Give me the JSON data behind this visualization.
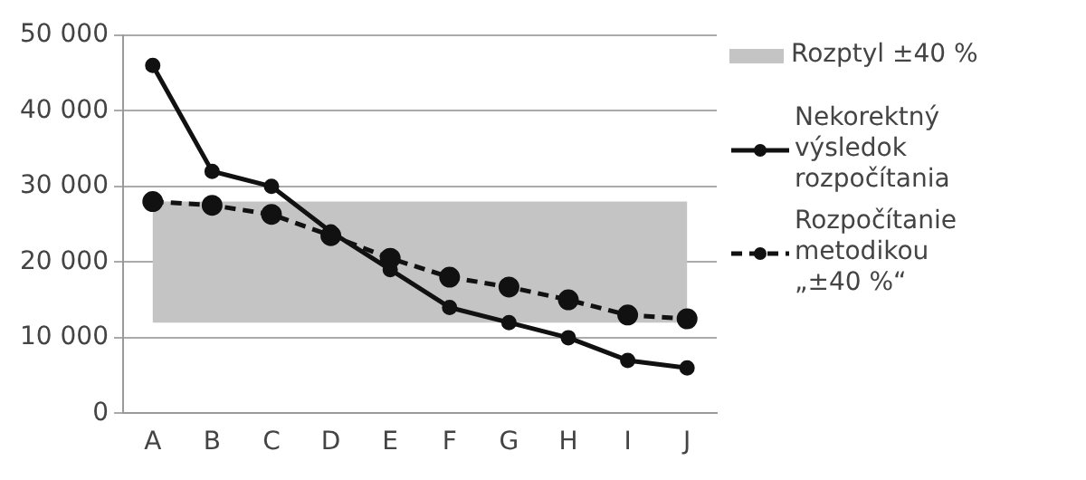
{
  "chart_data": {
    "type": "line",
    "categories": [
      "A",
      "B",
      "C",
      "D",
      "E",
      "F",
      "G",
      "H",
      "I",
      "J"
    ],
    "series": [
      {
        "name": "Nekorektný výsledok rozpočítania",
        "color": "#111111",
        "line_style": "solid",
        "values": [
          46000,
          32000,
          30000,
          24000,
          19000,
          14000,
          12000,
          10000,
          7000,
          6000
        ]
      },
      {
        "name": "Rozpočítanie metodikou „±40 %“",
        "color": "#111111",
        "line_style": "dashed",
        "values": [
          28000,
          27500,
          26300,
          23500,
          20500,
          18000,
          16700,
          15000,
          13000,
          12500
        ]
      }
    ],
    "bands": [
      {
        "axis": "y",
        "from": 12000,
        "to": 28000,
        "label": "Rozptyl ±40 %",
        "color": "#c4c4c4"
      }
    ],
    "ylim": [
      0,
      50000
    ],
    "yticks": [
      {
        "value": 0,
        "label": "0"
      },
      {
        "value": 10000,
        "label": "10 000"
      },
      {
        "value": 20000,
        "label": "20 000"
      },
      {
        "value": 30000,
        "label": "30 000"
      },
      {
        "value": 40000,
        "label": "40 000"
      },
      {
        "value": 50000,
        "label": "50 000"
      }
    ],
    "grid": "y",
    "legend": "right",
    "marker": "circle"
  }
}
